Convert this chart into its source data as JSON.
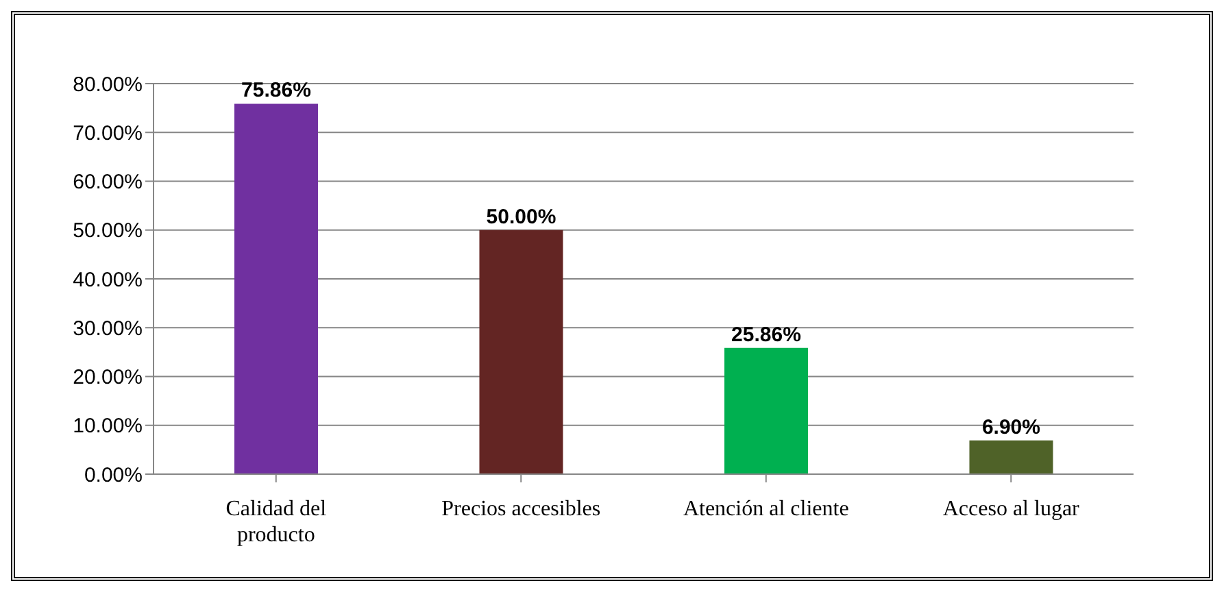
{
  "chart_data": {
    "type": "bar",
    "categories": [
      "Calidad del producto",
      "Precios accesibles",
      "Atención al cliente",
      "Acceso al lugar"
    ],
    "values": [
      75.86,
      50.0,
      25.86,
      6.9
    ],
    "colors": [
      "#7030a0",
      "#632523",
      "#00b050",
      "#4f6228"
    ],
    "value_labels": [
      "75.86%",
      "50.00%",
      "25.86%",
      "6.90%"
    ],
    "ylim": [
      0,
      80
    ],
    "yticks": [
      {
        "value": 0,
        "label": "0.00%"
      },
      {
        "value": 10,
        "label": "10.00%"
      },
      {
        "value": 20,
        "label": "20.00%"
      },
      {
        "value": 30,
        "label": "30.00%"
      },
      {
        "value": 40,
        "label": "40.00%"
      },
      {
        "value": 50,
        "label": "50.00%"
      },
      {
        "value": 60,
        "label": "60.00%"
      },
      {
        "value": 70,
        "label": "70.00%"
      },
      {
        "value": 80,
        "label": "80.00%"
      }
    ],
    "grid": "y"
  }
}
